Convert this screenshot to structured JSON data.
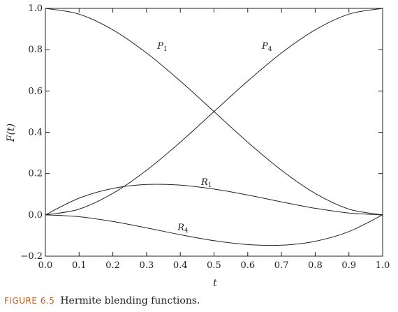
{
  "caption": {
    "tag": "FIGURE 6.5",
    "text": "Hermite blending functions."
  },
  "chart_data": {
    "type": "line",
    "title": "",
    "xlabel": "t",
    "ylabel": "F(t)",
    "xlim": [
      0.0,
      1.0
    ],
    "ylim": [
      -0.2,
      1.0
    ],
    "x_ticks": [
      "0.0",
      "0.1",
      "0.2",
      "0.3",
      "0.4",
      "0.5",
      "0.6",
      "0.7",
      "0.8",
      "0.9",
      "1.0"
    ],
    "y_ticks": [
      "−0.2",
      "0.0",
      "0.2",
      "0.4",
      "0.6",
      "0.8",
      "1.0"
    ],
    "grid": false,
    "x": [
      0.0,
      0.1,
      0.2,
      0.3,
      0.4,
      0.5,
      0.6,
      0.7,
      0.8,
      0.9,
      1.0
    ],
    "series": [
      {
        "name": "P",
        "sub": "1",
        "values": [
          1.0,
          0.972,
          0.896,
          0.784,
          0.648,
          0.5,
          0.352,
          0.216,
          0.104,
          0.028,
          0.0
        ]
      },
      {
        "name": "P",
        "sub": "4",
        "values": [
          0.0,
          0.028,
          0.104,
          0.216,
          0.352,
          0.5,
          0.648,
          0.784,
          0.896,
          0.972,
          1.0
        ]
      },
      {
        "name": "R",
        "sub": "1",
        "values": [
          0.0,
          0.081,
          0.128,
          0.147,
          0.144,
          0.125,
          0.096,
          0.063,
          0.032,
          0.009,
          0.0
        ]
      },
      {
        "name": "R",
        "sub": "4",
        "values": [
          0.0,
          -0.009,
          -0.032,
          -0.063,
          -0.096,
          -0.125,
          -0.144,
          -0.147,
          -0.128,
          -0.081,
          0.0
        ]
      }
    ]
  }
}
